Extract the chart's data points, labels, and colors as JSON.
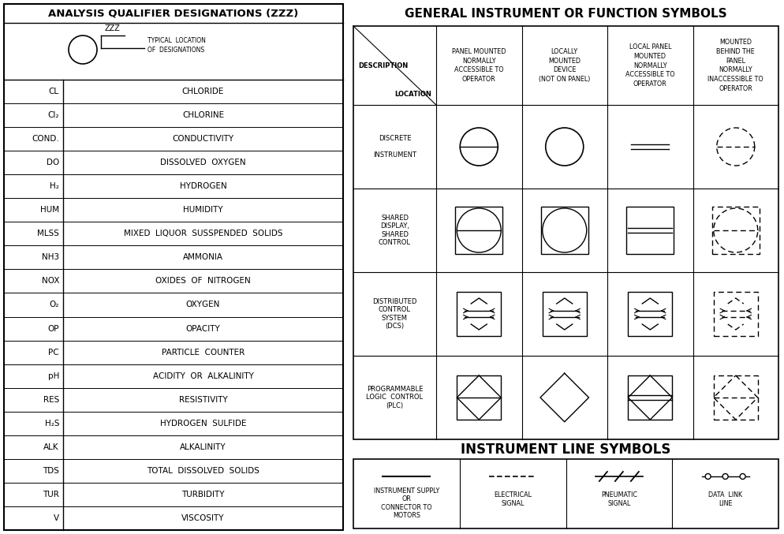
{
  "bg_color": "#ffffff",
  "line_color": "#000000",
  "title_left": "ANALYSIS QUALIFIER DESIGNATIONS (ZZZ)",
  "title_right": "GENERAL INSTRUMENT OR FUNCTION SYMBOLS",
  "title_bottom": "INSTRUMENT LINE SYMBOLS",
  "left_abbrevs": [
    "CL",
    "Cl₂",
    "COND.",
    "DO",
    "H₂",
    "HUM",
    "MLSS",
    "NH3",
    "NOX",
    "O₂",
    "OP",
    "PC",
    "pH",
    "RES",
    "H₂S",
    "ALK",
    "TDS",
    "TUR",
    "V"
  ],
  "left_descs": [
    "CHLORIDE",
    "CHLORINE",
    "CONDUCTIVITY",
    "DISSOLVED  OXYGEN",
    "HYDROGEN",
    "HUMIDITY",
    "MIXED  LIQUOR  SUSSPENDED  SOLIDS",
    "AMMONIA",
    "OXIDES  OF  NITROGEN",
    "OXYGEN",
    "OPACITY",
    "PARTICLE  COUNTER",
    "ACIDITY  OR  ALKALINITY",
    "RESISTIVITY",
    "HYDROGEN  SULFIDE",
    "ALKALINITY",
    "TOTAL  DISSOLVED  SOLIDS",
    "TURBIDITY",
    "VISCOSITY"
  ],
  "col_headers": [
    "PANEL MOUNTED\nNORMALLY\nACCESSIBLE TO\nOPERATOR",
    "LOCALLY\nMOUNTED\nDEVICE\n(NOT ON PANEL)",
    "LOCAL PANEL\nMOUNTED\nNORMALLY\nACCESSIBLE TO\nOPERATOR",
    "MOUNTED\nBEHIND THE\nPANEL\nNORMALLY\nINACCESSIBLE TO\nOPERATOR"
  ],
  "row_labels": [
    "DISCRETE\n\nINSTRUMENT",
    "SHARED\nDISPLAY,\nSHARED\nCONTROL",
    "DISTRIBUTED\nCONTROL\nSYSTEM\n(DCS)",
    "PROGRAMMABLE\nLOGIC  CONTROL\n(PLC)"
  ],
  "font_size_title": 11,
  "font_size_small": 6.0,
  "font_size_abbrev": 7.5
}
